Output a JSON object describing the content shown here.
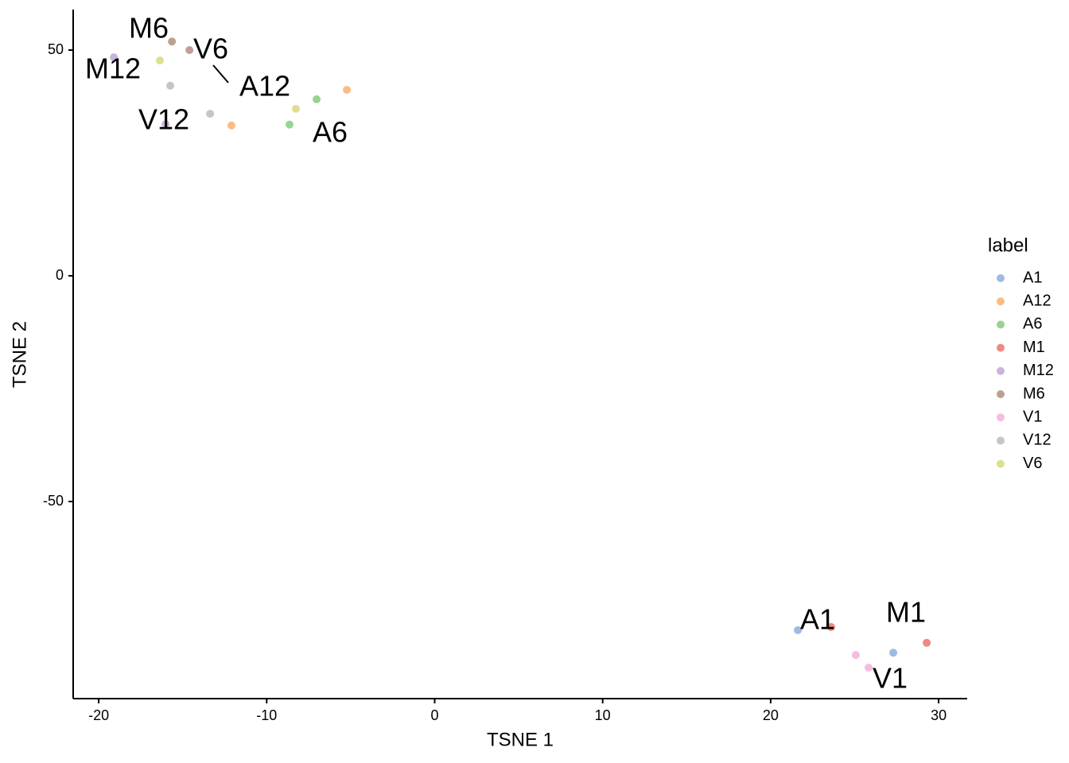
{
  "chart_data": {
    "type": "scatter",
    "xlabel": "TSNE 1",
    "ylabel": "TSNE 2",
    "xlim": [
      -21.52,
      31.7
    ],
    "ylim": [
      -93.66,
      58.98
    ],
    "xticks": [
      -20,
      -10,
      0,
      10,
      20,
      30
    ],
    "yticks": [
      -50,
      0,
      50
    ],
    "legend_title": "label",
    "legend_position": "right",
    "grid": false,
    "series": [
      {
        "name": "A1",
        "color": "#7fa4d6",
        "x": [
          21.62,
          27.3
        ],
        "values": [
          -78.5,
          -83.5
        ]
      },
      {
        "name": "A12",
        "color": "#f9a65a",
        "x": [
          -5.23,
          -12.1
        ],
        "values": [
          41.2,
          33.3
        ]
      },
      {
        "name": "A6",
        "color": "#77c46e",
        "x": [
          -7.03,
          -8.64
        ],
        "values": [
          39.1,
          33.5
        ]
      },
      {
        "name": "M1",
        "color": "#e8625e",
        "x": [
          23.6,
          29.29
        ],
        "values": [
          -77.8,
          -81.3
        ]
      },
      {
        "name": "M12",
        "color": "#b79bd4",
        "x": [
          -19.1,
          -16.02
        ],
        "values": [
          48.4,
          33.6
        ]
      },
      {
        "name": "M6",
        "color": "#a8806f",
        "x": [
          -15.64,
          -14.6
        ],
        "values": [
          51.9,
          50.0
        ]
      },
      {
        "name": "V1",
        "color": "#f2a5d5",
        "x": [
          25.07,
          25.83
        ],
        "values": [
          -84.0,
          -86.8
        ]
      },
      {
        "name": "V12",
        "color": "#b3b3b3",
        "x": [
          -15.74,
          -13.37
        ],
        "values": [
          42.1,
          35.9
        ]
      },
      {
        "name": "V6",
        "color": "#d3d36c",
        "x": [
          -16.36,
          -8.26
        ],
        "values": [
          47.7,
          37.0
        ]
      }
    ],
    "annotations": [
      "M6",
      "V6",
      "M12",
      "A12",
      "V12",
      "A6",
      "A1",
      "M1",
      "V1"
    ]
  }
}
